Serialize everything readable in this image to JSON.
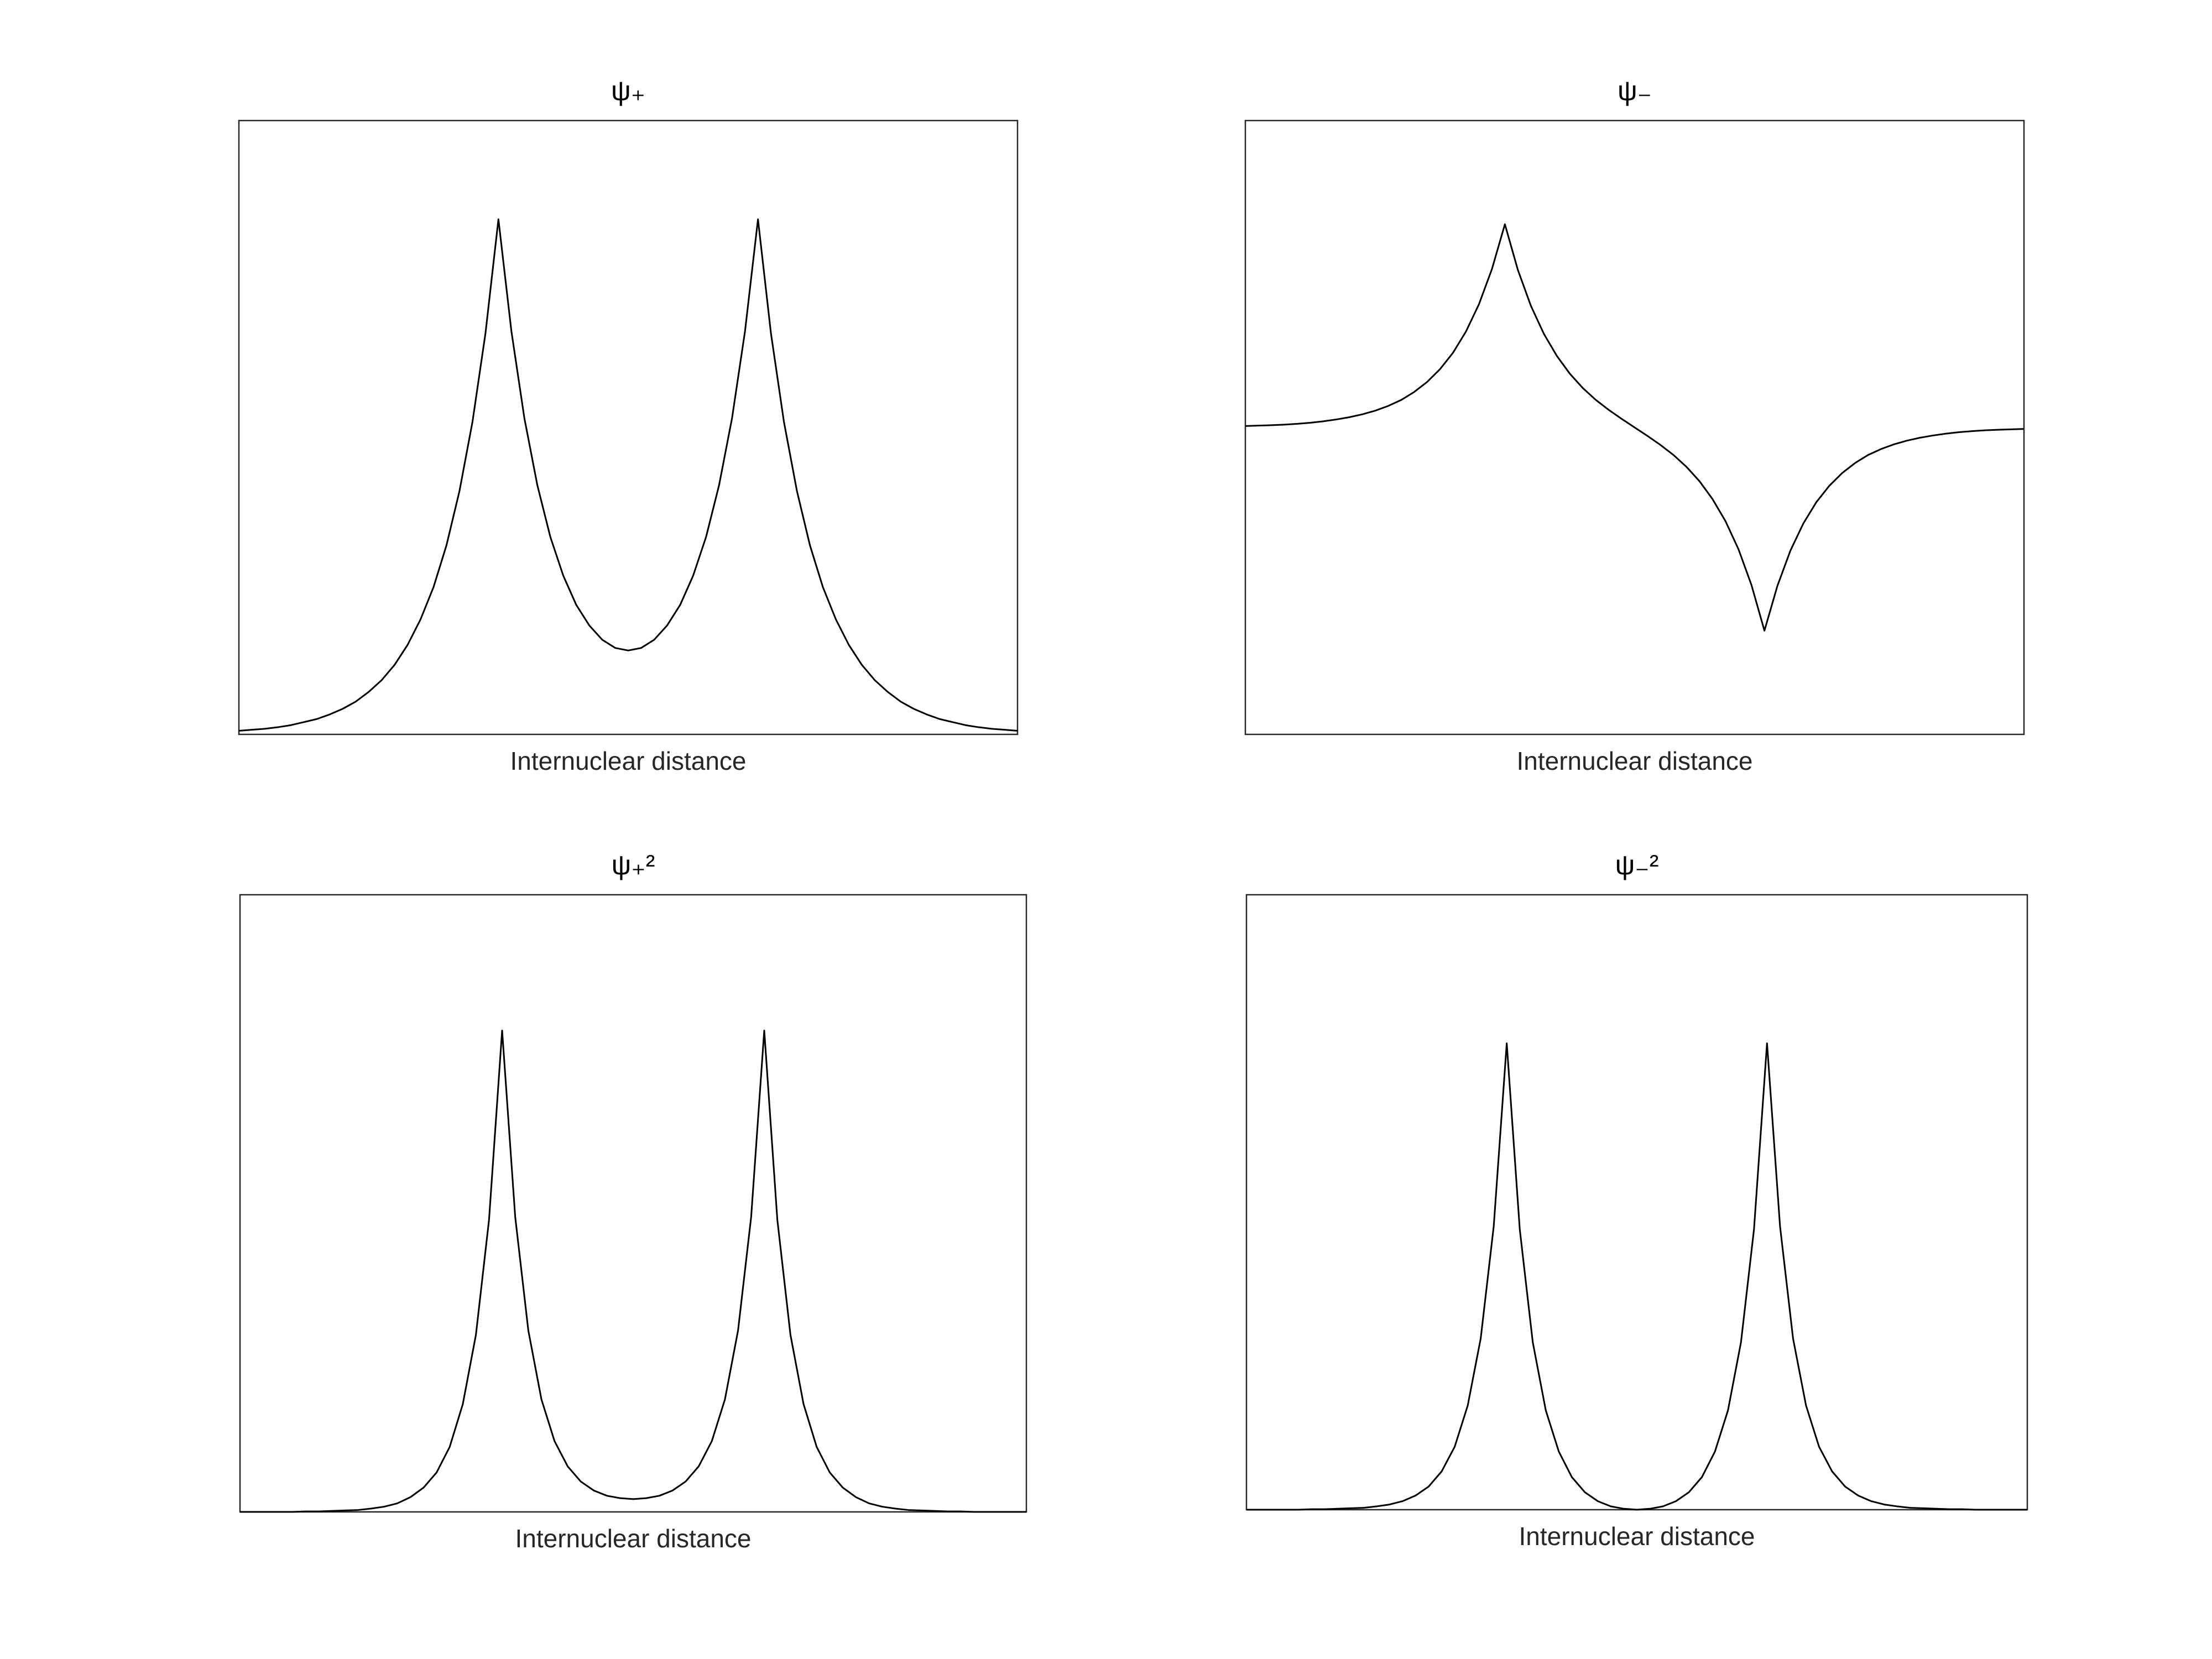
{
  "chart_data": [
    {
      "type": "line",
      "title": "ψ₊",
      "xlabel": "Internuclear distance",
      "color": "#000000",
      "xlim": [
        -3,
        3
      ],
      "ylim": [
        0,
        1.2
      ],
      "x": [
        -3,
        -2.9,
        -2.8,
        -2.7,
        -2.6,
        -2.5,
        -2.4,
        -2.3,
        -2.2,
        -2.1,
        -2,
        -1.9,
        -1.8,
        -1.7,
        -1.6,
        -1.5,
        -1.4,
        -1.3,
        -1.2,
        -1.1,
        -1,
        -0.9,
        -0.8,
        -0.7,
        -0.6,
        -0.5,
        -0.4,
        -0.3,
        -0.2,
        -0.1,
        0,
        0.1,
        0.2,
        0.3,
        0.4,
        0.5,
        0.6,
        0.7,
        0.8,
        0.9,
        1,
        1.1,
        1.2,
        1.3,
        1.4,
        1.5,
        1.6,
        1.7,
        1.8,
        1.9,
        2,
        2.1,
        2.2,
        2.3,
        2.4,
        2.5,
        2.6,
        2.7,
        2.8,
        2.9,
        3
      ],
      "values": [
        0.007,
        0.009,
        0.011,
        0.014,
        0.018,
        0.024,
        0.03,
        0.039,
        0.05,
        0.064,
        0.083,
        0.106,
        0.136,
        0.175,
        0.225,
        0.288,
        0.37,
        0.476,
        0.611,
        0.784,
        1.007,
        0.788,
        0.618,
        0.487,
        0.386,
        0.31,
        0.253,
        0.213,
        0.185,
        0.169,
        0.164,
        0.169,
        0.185,
        0.213,
        0.253,
        0.31,
        0.386,
        0.487,
        0.618,
        0.788,
        1.007,
        0.784,
        0.611,
        0.476,
        0.37,
        0.288,
        0.225,
        0.175,
        0.136,
        0.106,
        0.083,
        0.064,
        0.05,
        0.039,
        0.03,
        0.024,
        0.018,
        0.014,
        0.011,
        0.009,
        0.007
      ]
    },
    {
      "type": "line",
      "title": "ψ₋",
      "xlabel": "Internuclear distance",
      "color": "#000000",
      "xlim": [
        -3,
        3
      ],
      "ylim": [
        -1.5,
        1.5
      ],
      "x": [
        -3,
        -2.9,
        -2.8,
        -2.7,
        -2.6,
        -2.5,
        -2.4,
        -2.3,
        -2.2,
        -2.1,
        -2,
        -1.9,
        -1.8,
        -1.7,
        -1.6,
        -1.5,
        -1.4,
        -1.3,
        -1.2,
        -1.1,
        -1,
        -0.9,
        -0.8,
        -0.7,
        -0.6,
        -0.5,
        -0.4,
        -0.3,
        -0.2,
        -0.1,
        0,
        0.1,
        0.2,
        0.3,
        0.4,
        0.5,
        0.6,
        0.7,
        0.8,
        0.9,
        1,
        1.1,
        1.2,
        1.3,
        1.4,
        1.5,
        1.6,
        1.7,
        1.8,
        1.9,
        2,
        2.1,
        2.2,
        2.3,
        2.4,
        2.5,
        2.6,
        2.7,
        2.8,
        2.9,
        3
      ],
      "values": [
        0.007,
        0.009,
        0.011,
        0.014,
        0.018,
        0.023,
        0.03,
        0.039,
        0.05,
        0.064,
        0.082,
        0.105,
        0.134,
        0.173,
        0.222,
        0.285,
        0.365,
        0.469,
        0.602,
        0.774,
        0.993,
        0.77,
        0.595,
        0.458,
        0.35,
        0.263,
        0.193,
        0.135,
        0.086,
        0.042,
        0,
        -0.042,
        -0.086,
        -0.135,
        -0.193,
        -0.263,
        -0.35,
        -0.458,
        -0.595,
        -0.77,
        -0.993,
        -0.774,
        -0.602,
        -0.469,
        -0.365,
        -0.285,
        -0.222,
        -0.173,
        -0.134,
        -0.105,
        -0.082,
        -0.064,
        -0.05,
        -0.039,
        -0.03,
        -0.023,
        -0.018,
        -0.014,
        -0.011,
        -0.009,
        -0.007
      ]
    },
    {
      "type": "line",
      "title": "ψ₊²",
      "xlabel": "Internuclear distance",
      "color": "#000000",
      "xlim": [
        -3,
        3
      ],
      "ylim": [
        0,
        1.3
      ],
      "x": [
        -3,
        -2.9,
        -2.8,
        -2.7,
        -2.6,
        -2.5,
        -2.4,
        -2.3,
        -2.2,
        -2.1,
        -2,
        -1.9,
        -1.8,
        -1.7,
        -1.6,
        -1.5,
        -1.4,
        -1.3,
        -1.2,
        -1.1,
        -1,
        -0.9,
        -0.8,
        -0.7,
        -0.6,
        -0.5,
        -0.4,
        -0.3,
        -0.2,
        -0.1,
        0,
        0.1,
        0.2,
        0.3,
        0.4,
        0.5,
        0.6,
        0.7,
        0.8,
        0.9,
        1,
        1.1,
        1.2,
        1.3,
        1.4,
        1.5,
        1.6,
        1.7,
        1.8,
        1.9,
        2,
        2.1,
        2.2,
        2.3,
        2.4,
        2.5,
        2.6,
        2.7,
        2.8,
        2.9,
        3
      ],
      "values": [
        0,
        0,
        0,
        0,
        0,
        0.001,
        0.001,
        0.002,
        0.003,
        0.004,
        0.007,
        0.011,
        0.018,
        0.031,
        0.051,
        0.083,
        0.137,
        0.227,
        0.373,
        0.615,
        1.014,
        0.621,
        0.382,
        0.237,
        0.149,
        0.096,
        0.064,
        0.045,
        0.034,
        0.029,
        0.027,
        0.029,
        0.034,
        0.045,
        0.064,
        0.096,
        0.149,
        0.237,
        0.382,
        0.621,
        1.014,
        0.615,
        0.373,
        0.227,
        0.137,
        0.083,
        0.051,
        0.031,
        0.018,
        0.011,
        0.007,
        0.004,
        0.003,
        0.002,
        0.001,
        0.001,
        0,
        0,
        0,
        0,
        0
      ]
    },
    {
      "type": "line",
      "title": "ψ₋²",
      "xlabel": "Internuclear distance",
      "color": "#000000",
      "xlim": [
        -3,
        3
      ],
      "ylim": [
        0,
        1.3
      ],
      "x": [
        -3,
        -2.9,
        -2.8,
        -2.7,
        -2.6,
        -2.5,
        -2.4,
        -2.3,
        -2.2,
        -2.1,
        -2,
        -1.9,
        -1.8,
        -1.7,
        -1.6,
        -1.5,
        -1.4,
        -1.3,
        -1.2,
        -1.1,
        -1,
        -0.9,
        -0.8,
        -0.7,
        -0.6,
        -0.5,
        -0.4,
        -0.3,
        -0.2,
        -0.1,
        0,
        0.1,
        0.2,
        0.3,
        0.4,
        0.5,
        0.6,
        0.7,
        0.8,
        0.9,
        1,
        1.1,
        1.2,
        1.3,
        1.4,
        1.5,
        1.6,
        1.7,
        1.8,
        1.9,
        2,
        2.1,
        2.2,
        2.3,
        2.4,
        2.5,
        2.6,
        2.7,
        2.8,
        2.9,
        3
      ],
      "values": [
        0,
        0,
        0,
        0,
        0,
        0.001,
        0.001,
        0.002,
        0.003,
        0.004,
        0.007,
        0.011,
        0.018,
        0.03,
        0.049,
        0.081,
        0.133,
        0.22,
        0.362,
        0.599,
        0.986,
        0.593,
        0.354,
        0.21,
        0.123,
        0.069,
        0.037,
        0.018,
        0.007,
        0.002,
        0,
        0.002,
        0.007,
        0.018,
        0.037,
        0.069,
        0.123,
        0.21,
        0.354,
        0.593,
        0.986,
        0.599,
        0.362,
        0.22,
        0.133,
        0.081,
        0.049,
        0.03,
        0.018,
        0.011,
        0.007,
        0.004,
        0.003,
        0.002,
        0.001,
        0.001,
        0,
        0,
        0,
        0,
        0
      ]
    }
  ]
}
